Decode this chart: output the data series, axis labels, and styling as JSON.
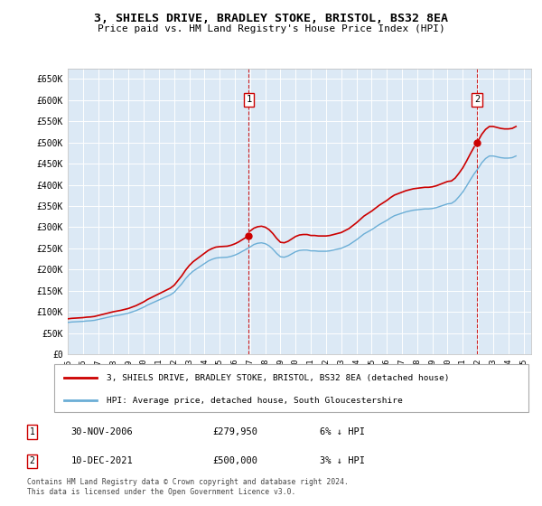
{
  "title": "3, SHIELS DRIVE, BRADLEY STOKE, BRISTOL, BS32 8EA",
  "subtitle": "Price paid vs. HM Land Registry's House Price Index (HPI)",
  "bg_color": "#dce9f5",
  "ylim": [
    0,
    675000
  ],
  "yticks": [
    0,
    50000,
    100000,
    150000,
    200000,
    250000,
    300000,
    350000,
    400000,
    450000,
    500000,
    550000,
    600000,
    650000
  ],
  "ytick_labels": [
    "£0",
    "£50K",
    "£100K",
    "£150K",
    "£200K",
    "£250K",
    "£300K",
    "£350K",
    "£400K",
    "£450K",
    "£500K",
    "£550K",
    "£600K",
    "£650K"
  ],
  "sale1_x": 2006.917,
  "sale1_y": 279950,
  "sale1_label": "1",
  "sale1_date": "30-NOV-2006",
  "sale1_price": "£279,950",
  "sale1_hpi": "6% ↓ HPI",
  "sale2_x": 2021.942,
  "sale2_y": 500000,
  "sale2_label": "2",
  "sale2_date": "10-DEC-2021",
  "sale2_price": "£500,000",
  "sale2_hpi": "3% ↓ HPI",
  "legend_line1": "3, SHIELS DRIVE, BRADLEY STOKE, BRISTOL, BS32 8EA (detached house)",
  "legend_line2": "HPI: Average price, detached house, South Gloucestershire",
  "footer": "Contains HM Land Registry data © Crown copyright and database right 2024.\nThis data is licensed under the Open Government Licence v3.0.",
  "hpi_color": "#6baed6",
  "sale_color": "#cc0000",
  "hpi_data": [
    [
      1995.0,
      75000
    ],
    [
      1995.25,
      76000
    ],
    [
      1995.5,
      76500
    ],
    [
      1995.75,
      77000
    ],
    [
      1996.0,
      77500
    ],
    [
      1996.25,
      78500
    ],
    [
      1996.5,
      79000
    ],
    [
      1996.75,
      80000
    ],
    [
      1997.0,
      82000
    ],
    [
      1997.25,
      84000
    ],
    [
      1997.5,
      86000
    ],
    [
      1997.75,
      88000
    ],
    [
      1998.0,
      90000
    ],
    [
      1998.25,
      91500
    ],
    [
      1998.5,
      93000
    ],
    [
      1998.75,
      95000
    ],
    [
      1999.0,
      97000
    ],
    [
      1999.25,
      100000
    ],
    [
      1999.5,
      103000
    ],
    [
      1999.75,
      107000
    ],
    [
      2000.0,
      111000
    ],
    [
      2000.25,
      116000
    ],
    [
      2000.5,
      120000
    ],
    [
      2000.75,
      124000
    ],
    [
      2001.0,
      128000
    ],
    [
      2001.25,
      132000
    ],
    [
      2001.5,
      136000
    ],
    [
      2001.75,
      140000
    ],
    [
      2002.0,
      146000
    ],
    [
      2002.25,
      156000
    ],
    [
      2002.5,
      166000
    ],
    [
      2002.75,
      178000
    ],
    [
      2003.0,
      188000
    ],
    [
      2003.25,
      196000
    ],
    [
      2003.5,
      202000
    ],
    [
      2003.75,
      208000
    ],
    [
      2004.0,
      214000
    ],
    [
      2004.25,
      220000
    ],
    [
      2004.5,
      224000
    ],
    [
      2004.75,
      227000
    ],
    [
      2005.0,
      228000
    ],
    [
      2005.25,
      228500
    ],
    [
      2005.5,
      229000
    ],
    [
      2005.75,
      231000
    ],
    [
      2006.0,
      234000
    ],
    [
      2006.25,
      238000
    ],
    [
      2006.5,
      243000
    ],
    [
      2006.75,
      248000
    ],
    [
      2007.0,
      253000
    ],
    [
      2007.25,
      259000
    ],
    [
      2007.5,
      262000
    ],
    [
      2007.75,
      263000
    ],
    [
      2008.0,
      261000
    ],
    [
      2008.25,
      256000
    ],
    [
      2008.5,
      248000
    ],
    [
      2008.75,
      238000
    ],
    [
      2009.0,
      230000
    ],
    [
      2009.25,
      229000
    ],
    [
      2009.5,
      232000
    ],
    [
      2009.75,
      237000
    ],
    [
      2010.0,
      242000
    ],
    [
      2010.25,
      245000
    ],
    [
      2010.5,
      246000
    ],
    [
      2010.75,
      246000
    ],
    [
      2011.0,
      244000
    ],
    [
      2011.25,
      244000
    ],
    [
      2011.5,
      243000
    ],
    [
      2011.75,
      243000
    ],
    [
      2012.0,
      243000
    ],
    [
      2012.25,
      244000
    ],
    [
      2012.5,
      246000
    ],
    [
      2012.75,
      248000
    ],
    [
      2013.0,
      250000
    ],
    [
      2013.25,
      254000
    ],
    [
      2013.5,
      258000
    ],
    [
      2013.75,
      264000
    ],
    [
      2014.0,
      270000
    ],
    [
      2014.25,
      277000
    ],
    [
      2014.5,
      284000
    ],
    [
      2014.75,
      289000
    ],
    [
      2015.0,
      294000
    ],
    [
      2015.25,
      300000
    ],
    [
      2015.5,
      306000
    ],
    [
      2015.75,
      311000
    ],
    [
      2016.0,
      316000
    ],
    [
      2016.25,
      322000
    ],
    [
      2016.5,
      327000
    ],
    [
      2016.75,
      330000
    ],
    [
      2017.0,
      333000
    ],
    [
      2017.25,
      336000
    ],
    [
      2017.5,
      338000
    ],
    [
      2017.75,
      340000
    ],
    [
      2018.0,
      341000
    ],
    [
      2018.25,
      342000
    ],
    [
      2018.5,
      343000
    ],
    [
      2018.75,
      343000
    ],
    [
      2019.0,
      344000
    ],
    [
      2019.25,
      346000
    ],
    [
      2019.5,
      349000
    ],
    [
      2019.75,
      352000
    ],
    [
      2020.0,
      355000
    ],
    [
      2020.25,
      356000
    ],
    [
      2020.5,
      362000
    ],
    [
      2020.75,
      372000
    ],
    [
      2021.0,
      383000
    ],
    [
      2021.25,
      397000
    ],
    [
      2021.5,
      412000
    ],
    [
      2021.75,
      426000
    ],
    [
      2022.0,
      438000
    ],
    [
      2022.25,
      452000
    ],
    [
      2022.5,
      462000
    ],
    [
      2022.75,
      468000
    ],
    [
      2023.0,
      468000
    ],
    [
      2023.25,
      466000
    ],
    [
      2023.5,
      464000
    ],
    [
      2023.75,
      463000
    ],
    [
      2024.0,
      463000
    ],
    [
      2024.25,
      464000
    ],
    [
      2024.5,
      468000
    ]
  ],
  "xticks": [
    1995,
    1996,
    1997,
    1998,
    1999,
    2000,
    2001,
    2002,
    2003,
    2004,
    2005,
    2006,
    2007,
    2008,
    2009,
    2010,
    2011,
    2012,
    2013,
    2014,
    2015,
    2016,
    2017,
    2018,
    2019,
    2020,
    2021,
    2022,
    2023,
    2024,
    2025
  ],
  "xlim": [
    1995,
    2025.5
  ]
}
